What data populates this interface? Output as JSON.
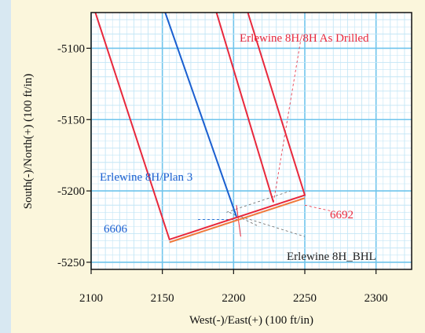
{
  "chart_data": {
    "type": "line",
    "xlabel": "West(-)/East(+) (100 ft/in)",
    "ylabel": "South(-)/North(+) (100 ft/in)",
    "xlim": [
      2100,
      2325
    ],
    "ylim": [
      -5255,
      -5075
    ],
    "x_ticks": [
      "2100",
      "2150",
      "2200",
      "2250",
      "2300"
    ],
    "y_ticks": [
      "-5100",
      "-5150",
      "-5200",
      "-5250"
    ],
    "x_tick_values": [
      2100,
      2150,
      2200,
      2250,
      2300
    ],
    "y_tick_values": [
      -5100,
      -5150,
      -5200,
      -5250
    ],
    "grid": true,
    "series": [
      {
        "name": "Erlewine 8H/Plan 3",
        "color": "#1a5fd0",
        "points": [
          [
            2152,
            -5075
          ],
          [
            2202,
            -5218
          ]
        ]
      },
      {
        "name": "Erlewine 8H/8H As Drilled",
        "color": "#e8283c",
        "points": [
          [
            2188,
            -5075
          ],
          [
            2228,
            -5208
          ]
        ]
      },
      {
        "name": "",
        "color": "#e8283c",
        "points": [
          [
            2103,
            -5075
          ],
          [
            2155,
            -5234
          ],
          [
            2250,
            -5203
          ],
          [
            2210,
            -5075
          ]
        ]
      },
      {
        "name": "",
        "color": "#f07a3c",
        "points": [
          [
            2155,
            -5236
          ],
          [
            2250,
            -5205
          ]
        ]
      }
    ],
    "annotations": [
      {
        "text": "Erlewine 8H/8H As Drilled",
        "color": "#e8283c"
      },
      {
        "text": "Erlewine 8H/Plan 3",
        "color": "#1a5fd0"
      },
      {
        "text": "6606",
        "color": "#1a5fd0"
      },
      {
        "text": "6692",
        "color": "#e8283c"
      },
      {
        "text": "Erlewine 8H_BHL",
        "color": "#222222"
      }
    ]
  },
  "colors": {
    "background": "#fbf6dc",
    "plot_bg": "#ffffff",
    "grid_major": "#6fc4ec",
    "grid_minor": "#c4e6f6",
    "frame": "#111111"
  }
}
